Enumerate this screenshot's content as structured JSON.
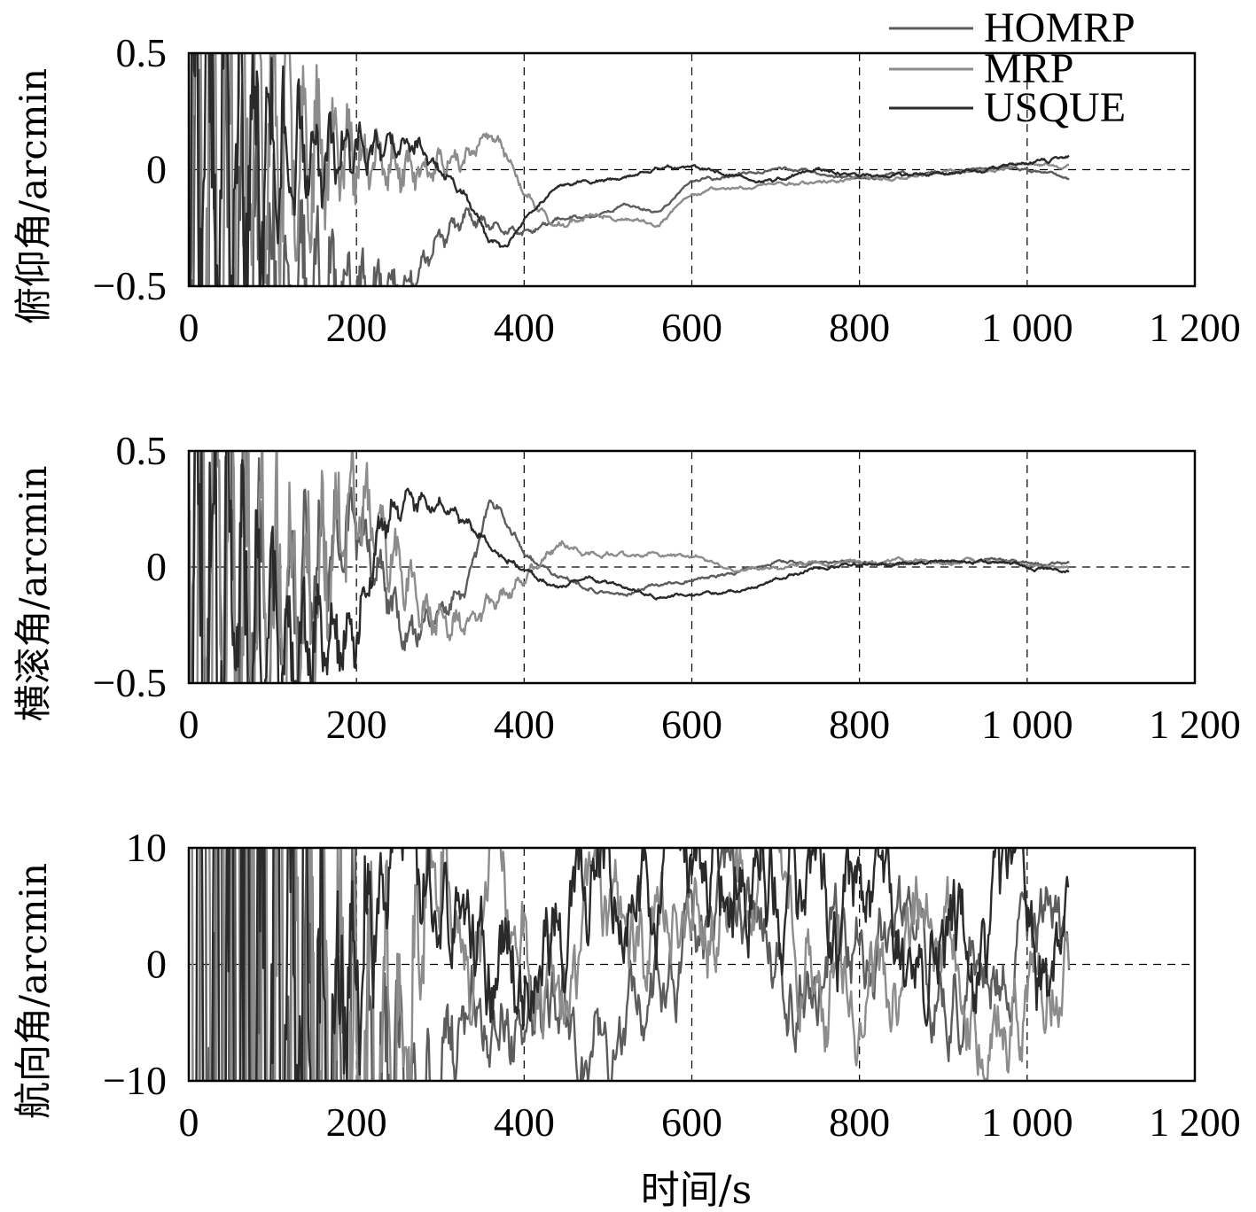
{
  "chart_data": [
    {
      "type": "line",
      "ylabel": "俯仰角/arcmin",
      "xlabel": "",
      "xlim": [
        0,
        1200
      ],
      "ylim": [
        -0.5,
        0.5
      ],
      "xticks": [
        "0",
        "200",
        "400",
        "600",
        "800",
        "1 000",
        "1 200"
      ],
      "yticks": [
        "−0.5",
        "0",
        "0.5"
      ],
      "ytick_values": [
        -0.5,
        0,
        0.5
      ],
      "grid": true,
      "legend": {
        "placement": "top-right",
        "entries": [
          "HOMRP",
          "MRP",
          "USQUE"
        ]
      },
      "series": [
        {
          "name": "HOMRP",
          "color": "#5c5c5c",
          "amp": 3.0,
          "decay": 75,
          "noise": 0.01,
          "seed": 11,
          "x": [
            0,
            260,
            280,
            300,
            330,
            360,
            400,
            440,
            480,
            520,
            560,
            600,
            650,
            700,
            750,
            800,
            850,
            900,
            950,
            1000,
            1050
          ],
          "y": [
            -0.6,
            -0.5,
            -0.4,
            -0.3,
            -0.2,
            -0.25,
            -0.28,
            -0.22,
            -0.2,
            -0.15,
            -0.18,
            -0.05,
            -0.03,
            0.02,
            -0.02,
            -0.03,
            -0.02,
            -0.01,
            0.0,
            0.0,
            -0.04
          ]
        },
        {
          "name": "MRP",
          "color": "#8c8c8c",
          "amp": 2.4,
          "decay": 85,
          "noise": 0.012,
          "seed": 23,
          "x": [
            0,
            280,
            300,
            330,
            360,
            380,
            400,
            440,
            480,
            520,
            560,
            600,
            650,
            700,
            750,
            800,
            850,
            900,
            950,
            1000,
            1050
          ],
          "y": [
            0.2,
            0.0,
            0.02,
            0.05,
            0.15,
            0.05,
            -0.1,
            -0.25,
            -0.2,
            -0.22,
            -0.25,
            -0.1,
            -0.08,
            -0.06,
            -0.05,
            -0.04,
            -0.03,
            -0.01,
            0.0,
            0.01,
            0.02
          ]
        },
        {
          "name": "USQUE",
          "color": "#2a2a2a",
          "amp": 2.2,
          "decay": 70,
          "noise": 0.012,
          "seed": 37,
          "x": [
            0,
            250,
            270,
            300,
            330,
            360,
            380,
            400,
            430,
            470,
            520,
            560,
            600,
            650,
            700,
            750,
            800,
            850,
            900,
            950,
            1000,
            1050
          ],
          "y": [
            0.0,
            0.1,
            0.1,
            0.0,
            -0.1,
            -0.3,
            -0.32,
            -0.22,
            -0.1,
            -0.05,
            -0.05,
            0.02,
            0.0,
            -0.02,
            -0.05,
            0.0,
            -0.03,
            -0.02,
            -0.01,
            0.0,
            0.02,
            0.05
          ]
        }
      ]
    },
    {
      "type": "line",
      "ylabel": "横滚角/arcmin",
      "xlabel": "",
      "xlim": [
        0,
        1200
      ],
      "ylim": [
        -0.5,
        0.5
      ],
      "xticks": [
        "0",
        "200",
        "400",
        "600",
        "800",
        "1 000",
        "1 200"
      ],
      "yticks": [
        "−0.5",
        "0",
        "0.5"
      ],
      "ytick_values": [
        -0.5,
        0,
        0.5
      ],
      "grid": true,
      "series": [
        {
          "name": "HOMRP",
          "color": "#5c5c5c",
          "amp": 2.2,
          "decay": 80,
          "noise": 0.01,
          "seed": 41,
          "x": [
            0,
            100,
            200,
            260,
            300,
            330,
            360,
            400,
            440,
            480,
            520,
            560,
            600,
            650,
            700,
            750,
            800,
            850,
            900,
            950,
            1000,
            1050
          ],
          "y": [
            0.3,
            -0.2,
            0.2,
            -0.3,
            -0.2,
            -0.1,
            0.3,
            0.05,
            -0.05,
            -0.1,
            -0.12,
            -0.08,
            -0.05,
            -0.03,
            0.02,
            0.02,
            0.02,
            0.02,
            0.02,
            0.02,
            0.01,
            0.01
          ]
        },
        {
          "name": "MRP",
          "color": "#8c8c8c",
          "amp": 2.6,
          "decay": 90,
          "noise": 0.012,
          "seed": 53,
          "x": [
            0,
            100,
            150,
            200,
            250,
            280,
            320,
            360,
            400,
            440,
            480,
            520,
            560,
            600,
            650,
            700,
            750,
            800,
            850,
            900,
            950,
            1000,
            1050
          ],
          "y": [
            0.0,
            -0.25,
            -0.1,
            0.3,
            0.0,
            -0.2,
            -0.25,
            -0.15,
            -0.05,
            0.1,
            0.05,
            0.05,
            0.05,
            0.05,
            0.0,
            0.0,
            0.02,
            0.02,
            0.02,
            0.02,
            0.02,
            0.01,
            0.0
          ]
        },
        {
          "name": "USQUE",
          "color": "#2a2a2a",
          "amp": 2.0,
          "decay": 75,
          "noise": 0.01,
          "seed": 67,
          "x": [
            0,
            100,
            150,
            200,
            230,
            260,
            300,
            330,
            370,
            400,
            440,
            480,
            520,
            560,
            600,
            650,
            700,
            750,
            800,
            850,
            900,
            950,
            1000,
            1050
          ],
          "y": [
            0.0,
            -0.35,
            -0.32,
            -0.3,
            0.2,
            0.3,
            0.27,
            0.2,
            0.05,
            0.0,
            -0.1,
            -0.05,
            -0.1,
            -0.12,
            -0.12,
            -0.1,
            -0.05,
            0.0,
            0.02,
            0.02,
            0.02,
            0.02,
            0.0,
            -0.02
          ]
        }
      ]
    },
    {
      "type": "line",
      "ylabel": "航向角/arcmin",
      "xlabel": "时间/s",
      "xlim": [
        0,
        1200
      ],
      "ylim": [
        -10,
        10
      ],
      "xticks": [
        "0",
        "200",
        "400",
        "600",
        "800",
        "1 000",
        "1 200"
      ],
      "yticks": [
        "−10",
        "0",
        "10"
      ],
      "ytick_values": [
        -10,
        0,
        10
      ],
      "grid": true,
      "series": [
        {
          "name": "HOMRP",
          "color": "#5c5c5c",
          "amp": 30,
          "decay": 60,
          "noise": 0.25,
          "seed": 71,
          "x": [
            0,
            300,
            340,
            360,
            400,
            440,
            480,
            520,
            560,
            600,
            650,
            700,
            750,
            800,
            850,
            900,
            950,
            1000,
            1050
          ],
          "y": [
            -10,
            -12,
            -9,
            -8,
            -7.5,
            -8,
            -7,
            -5,
            -2,
            0,
            2,
            0.5,
            1,
            2.5,
            1.5,
            1,
            0.5,
            0.5,
            1.5
          ]
        },
        {
          "name": "MRP",
          "color": "#8c8c8c",
          "amp": 25,
          "decay": 65,
          "noise": 0.3,
          "seed": 83,
          "x": [
            0,
            240,
            280,
            300,
            330,
            360,
            400,
            440,
            480,
            520,
            550,
            580,
            620,
            680,
            720,
            760,
            800,
            850,
            900,
            950,
            1000,
            1050
          ],
          "y": [
            0,
            -8,
            0,
            5,
            3,
            2.5,
            2,
            1,
            -1,
            -2,
            0,
            4,
            6,
            6,
            4,
            3,
            3,
            1.5,
            1,
            0.5,
            0,
            -1
          ]
        },
        {
          "name": "USQUE",
          "color": "#2a2a2a",
          "amp": 20,
          "decay": 55,
          "noise": 0.35,
          "seed": 97,
          "x": [
            0,
            170,
            200,
            240,
            270,
            300,
            330,
            360,
            400,
            440,
            480,
            520,
            560,
            580,
            620,
            660,
            700,
            740,
            780,
            820,
            860,
            900,
            950,
            1000,
            1050
          ],
          "y": [
            -10,
            -8,
            -6,
            -4,
            2,
            3,
            0.5,
            0,
            0.5,
            2,
            3,
            3.5,
            6,
            9,
            7,
            7,
            6,
            4,
            3,
            2,
            1,
            0.5,
            -0.5,
            -1.2,
            -1.5
          ]
        }
      ]
    }
  ]
}
